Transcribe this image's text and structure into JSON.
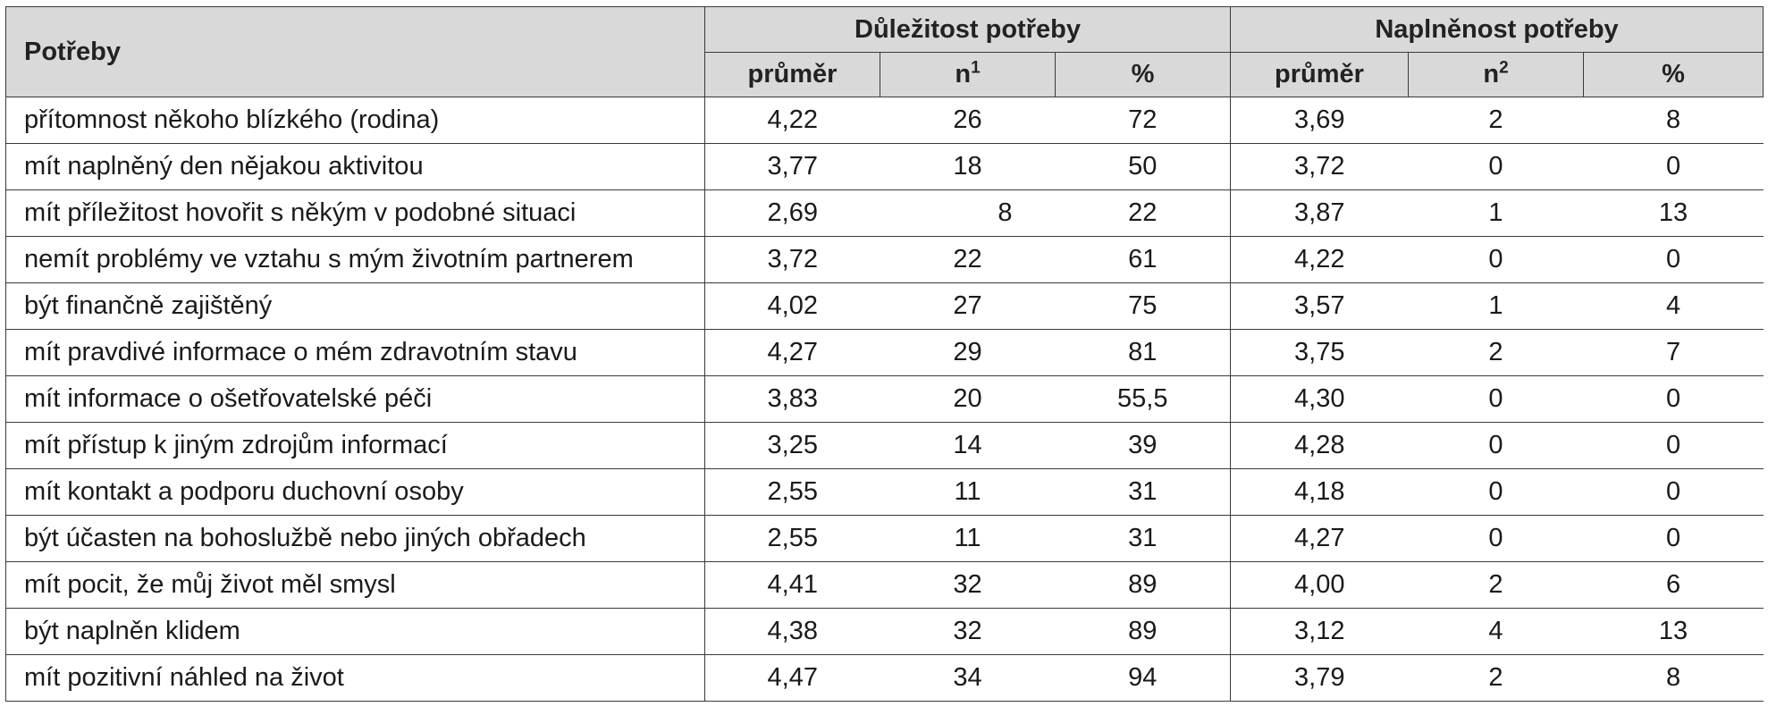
{
  "table": {
    "label_header": "Potřeby",
    "groups": [
      {
        "title": "Důležitost potřeby",
        "columns": [
          {
            "label": "průměr",
            "sup": ""
          },
          {
            "label": "n",
            "sup": "1"
          },
          {
            "label": "%",
            "sup": ""
          }
        ]
      },
      {
        "title": "Naplněnost potřeby",
        "columns": [
          {
            "label": "průměr",
            "sup": ""
          },
          {
            "label": "n",
            "sup": "2"
          },
          {
            "label": "%",
            "sup": ""
          }
        ]
      }
    ],
    "rows": [
      {
        "label": "přítomnost někoho blízkého (rodina)",
        "values": [
          "4,22",
          "26",
          "72",
          "3,69",
          "2",
          "8"
        ]
      },
      {
        "label": "mít naplněný den nějakou aktivitou",
        "values": [
          "3,77",
          "18",
          "50",
          "3,72",
          "0",
          "0"
        ]
      },
      {
        "label": "mít příležitost hovořit s někým v podobné situaci",
        "values": [
          "2,69",
          "8",
          "22",
          "3,87",
          "1",
          "13"
        ]
      },
      {
        "label": "nemít problémy ve vztahu s mým životním partnerem",
        "values": [
          "3,72",
          "22",
          "61",
          "4,22",
          "0",
          "0"
        ]
      },
      {
        "label": "být finančně zajištěný",
        "values": [
          "4,02",
          "27",
          "75",
          "3,57",
          "1",
          "4"
        ]
      },
      {
        "label": "mít pravdivé informace o mém zdravotním stavu",
        "values": [
          "4,27",
          "29",
          "81",
          "3,75",
          "2",
          "7"
        ]
      },
      {
        "label": "mít informace o ošetřovatelské péči",
        "values": [
          "3,83",
          "20",
          "55,5",
          "4,30",
          "0",
          "0"
        ]
      },
      {
        "label": "mít přístup k jiným zdrojům informací",
        "values": [
          "3,25",
          "14",
          "39",
          "4,28",
          "0",
          "0"
        ]
      },
      {
        "label": "mít kontakt a podporu duchovní osoby",
        "values": [
          "2,55",
          "11",
          "31",
          "4,18",
          "0",
          "0"
        ]
      },
      {
        "label": "být účasten na bohoslužbě nebo jiných obřadech",
        "values": [
          "2,55",
          "11",
          "31",
          "4,27",
          "0",
          "0"
        ]
      },
      {
        "label": "mít pocit, že můj život měl smysl",
        "values": [
          "4,41",
          "32",
          "89",
          "4,00",
          "2",
          "6"
        ]
      },
      {
        "label": "být naplněn klidem",
        "values": [
          "4,38",
          "32",
          "89",
          "3,12",
          "4",
          "13"
        ]
      },
      {
        "label": "mít pozitivní náhled na život",
        "values": [
          "4,47",
          "34",
          "94",
          "3,79",
          "2",
          "8"
        ]
      }
    ]
  }
}
